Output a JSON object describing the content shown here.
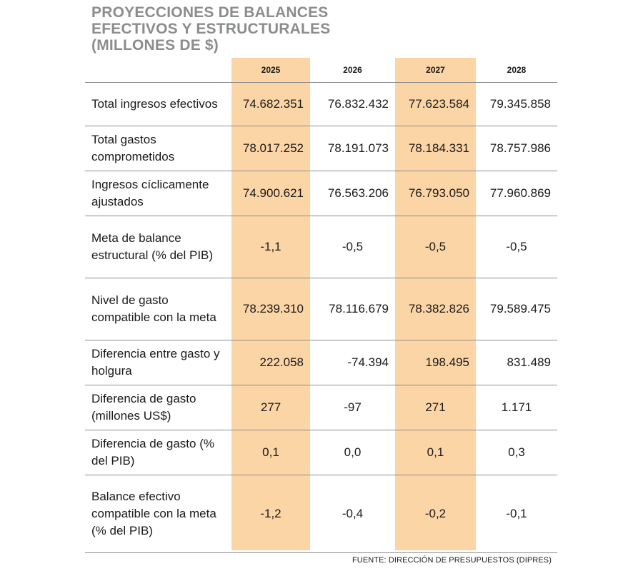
{
  "title_lines": [
    "PROYECCIONES DE BALANCES",
    "EFECTIVOS Y ESTRUCTURALES",
    "(MILLONES DE $)"
  ],
  "source": "FUENTE: DIRECCIÓN DE PRESUPUESTOS (DIPRES)",
  "chart_data": {
    "type": "table",
    "title": "PROYECCIONES DE BALANCES EFECTIVOS Y ESTRUCTURALES (MILLONES DE $)",
    "columns": [
      "2025",
      "2026",
      "2027",
      "2028"
    ],
    "highlighted_columns": [
      "2025",
      "2027"
    ],
    "highlight_color": "#fbd5a5",
    "rows": [
      {
        "label": "Total ingresos efectivos",
        "values": [
          "74.682.351",
          "76.832.432",
          "77.623.584",
          "79.345.858"
        ]
      },
      {
        "label": "Total gastos comprometidos",
        "values": [
          "78.017.252",
          "78.191.073",
          "78.184.331",
          "78.757.986"
        ]
      },
      {
        "label": "Ingresos cíclicamente ajustados",
        "values": [
          "74.900.621",
          "76.563.206",
          "76.793.050",
          "77.960.869"
        ]
      },
      {
        "label": "Meta de balance estructural (% del PIB)",
        "values": [
          "-1,1",
          "-0,5",
          "-0,5",
          "-0,5"
        ]
      },
      {
        "label": "Nivel de gasto compatible con la meta",
        "values": [
          "78.239.310",
          "78.116.679",
          "78.382.826",
          "79.589.475"
        ]
      },
      {
        "label": "Diferencia entre gasto y holgura",
        "values": [
          "222.058",
          "-74.394",
          "198.495",
          "831.489"
        ]
      },
      {
        "label": "Diferencia de gasto (millones US$)",
        "values": [
          "277",
          "-97",
          "271",
          "1.171"
        ]
      },
      {
        "label": "Diferencia de gasto (% del PIB)",
        "values": [
          "0,1",
          "0,0",
          "0,1",
          "0,3"
        ]
      },
      {
        "label": "Balance efectivo compatible con la meta (% del PIB)",
        "values": [
          "-1,2",
          "-0,4",
          "-0,2",
          "-0,1"
        ]
      }
    ]
  }
}
